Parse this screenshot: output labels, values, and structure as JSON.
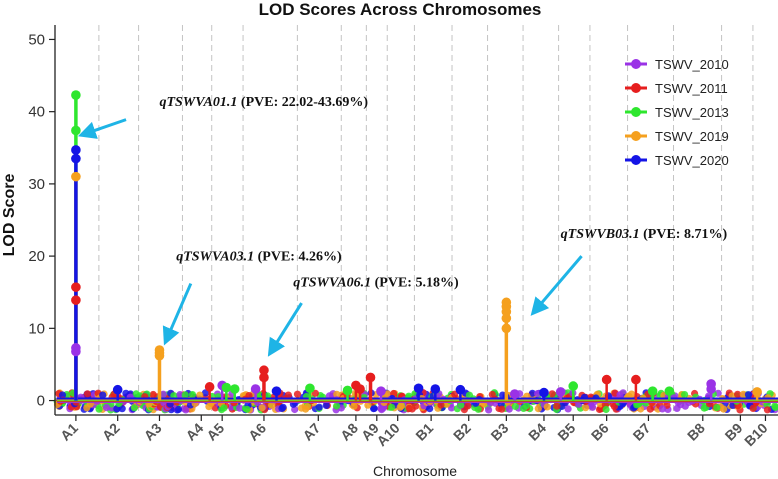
{
  "chart_data": {
    "type": "scatter",
    "title": "LOD Scores Across Chromosomes",
    "xlabel": "Chromosome",
    "ylabel": "LOD Score",
    "ylim": [
      -2,
      52
    ],
    "yticks": [
      0,
      10,
      20,
      30,
      40,
      50
    ],
    "grid": "vertical dashed at chromosome boundaries",
    "legend_position": "top-right",
    "categories": [
      "A1",
      "A2",
      "A3",
      "A4",
      "A5",
      "A6",
      "A7",
      "A8",
      "A9",
      "A10",
      "B1",
      "B2",
      "B3",
      "B4",
      "B5",
      "B6",
      "B7",
      "B8",
      "B9",
      "B10"
    ],
    "category_ticks": [
      {
        "label": "A1",
        "x": 1
      },
      {
        "label": "A2",
        "x": 2
      },
      {
        "label": "A3",
        "x": 3
      },
      {
        "label": "A4",
        "x": 4
      },
      {
        "label": "A5",
        "x": 4.5
      },
      {
        "label": "A6",
        "x": 5.5
      },
      {
        "label": "A7",
        "x": 6.8
      },
      {
        "label": "A8",
        "x": 7.7
      },
      {
        "label": "A9",
        "x": 8.2
      },
      {
        "label": "A10",
        "x": 8.7
      },
      {
        "label": "B1",
        "x": 9.5
      },
      {
        "label": "B2",
        "x": 10.4
      },
      {
        "label": "B3",
        "x": 11.3
      },
      {
        "label": "B4",
        "x": 12.2
      },
      {
        "label": "B5",
        "x": 12.9
      },
      {
        "label": "B6",
        "x": 13.7
      },
      {
        "label": "B7",
        "x": 14.7
      },
      {
        "label": "B8",
        "x": 16
      },
      {
        "label": "B9",
        "x": 16.9
      },
      {
        "label": "B10",
        "x": 17.5
      }
    ],
    "xlim": [
      0.5,
      17.8
    ],
    "boundaries": [
      1.55,
      2.5,
      3.55,
      4.25,
      5.0,
      6.3,
      7.35,
      7.95,
      8.45,
      9.1,
      10.0,
      10.85,
      11.7,
      12.55,
      13.3,
      14.2,
      15.3,
      16.45,
      17.2
    ],
    "series": [
      {
        "name": "TSWV_2010",
        "color": "#9a32e6",
        "points": [
          [
            1,
            7.3
          ],
          [
            1,
            6.8
          ],
          [
            4.5,
            2.1
          ],
          [
            5.3,
            1.6
          ],
          [
            8.3,
            1.3
          ],
          [
            11.5,
            0.9
          ],
          [
            16.2,
            2.3
          ],
          [
            16.2,
            1.6
          ],
          [
            12.6,
            1.2
          ]
        ]
      },
      {
        "name": "TSWV_2011",
        "color": "#e61e1e",
        "points": [
          [
            1,
            15.7
          ],
          [
            1,
            13.9
          ],
          [
            4.2,
            1.9
          ],
          [
            5.5,
            4.2
          ],
          [
            5.5,
            3.2
          ],
          [
            7.7,
            2.1
          ],
          [
            7.8,
            1.6
          ],
          [
            8.05,
            3.2
          ],
          [
            13.7,
            2.9
          ],
          [
            14.4,
            2.9
          ]
        ]
      },
      {
        "name": "TSWV_2013",
        "color": "#2ee62e",
        "points": [
          [
            1,
            42.3
          ],
          [
            1,
            37.4
          ],
          [
            4.6,
            1.8
          ],
          [
            4.8,
            1.6
          ],
          [
            6.6,
            1.7
          ],
          [
            12.9,
            2.0
          ],
          [
            14.8,
            1.3
          ],
          [
            15.2,
            1.3
          ],
          [
            7.5,
            1.4
          ]
        ]
      },
      {
        "name": "TSWV_2019",
        "color": "#f5a01e",
        "points": [
          [
            1,
            31.0
          ],
          [
            3,
            7.0
          ],
          [
            3,
            6.6
          ],
          [
            3,
            6.2
          ],
          [
            11.3,
            13.6
          ],
          [
            11.3,
            13.0
          ],
          [
            11.3,
            12.3
          ],
          [
            11.3,
            11.4
          ],
          [
            11.3,
            10.0
          ],
          [
            17.3,
            1.2
          ]
        ]
      },
      {
        "name": "TSWV_2020",
        "color": "#1414e6",
        "points": [
          [
            1,
            34.7
          ],
          [
            1,
            33.5
          ],
          [
            2,
            1.5
          ],
          [
            9.2,
            1.7
          ],
          [
            9.6,
            1.6
          ],
          [
            10.2,
            1.5
          ],
          [
            12.2,
            1.1
          ],
          [
            5.8,
            1.3
          ]
        ]
      }
    ],
    "annotations": [
      {
        "gene": "qTSWVA01.1",
        "pve": " (PVE: 22.02-43.69%)",
        "x": 3.0,
        "y": 40.8,
        "arrow_from": [
          2.2,
          38.9
        ],
        "arrow_to": [
          1.15,
          36.8
        ]
      },
      {
        "gene": "qTSWVA03.1",
        "pve": " (PVE: 4.26%)",
        "x": 3.4,
        "y": 19.4,
        "arrow_from": [
          3.75,
          16.2
        ],
        "arrow_to": [
          3.15,
          8.2
        ]
      },
      {
        "gene": "qTSWVA06.1",
        "pve": " (PVE: 5.18%)",
        "x": 6.2,
        "y": 15.8,
        "arrow_from": [
          6.4,
          13.5
        ],
        "arrow_to": [
          5.65,
          6.6
        ]
      },
      {
        "gene": "qTSWVB03.1",
        "pve": " (PVE: 8.71%)",
        "x": 12.6,
        "y": 22.5,
        "arrow_from": [
          13.1,
          20.0
        ],
        "arrow_to": [
          11.95,
          12.2
        ]
      }
    ]
  }
}
